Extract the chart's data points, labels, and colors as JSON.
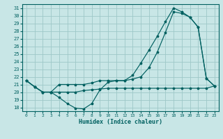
{
  "xlabel": "Humidex (Indice chaleur)",
  "background_color": "#c8e6e6",
  "grid_color": "#9ec8c8",
  "line_color": "#006060",
  "xlim": [
    -0.5,
    23.5
  ],
  "ylim": [
    17.5,
    31.5
  ],
  "yticks": [
    18,
    19,
    20,
    21,
    22,
    23,
    24,
    25,
    26,
    27,
    28,
    29,
    30,
    31
  ],
  "xticks": [
    0,
    1,
    2,
    3,
    4,
    5,
    6,
    7,
    8,
    9,
    10,
    11,
    12,
    13,
    14,
    15,
    16,
    17,
    18,
    19,
    20,
    21,
    22,
    23
  ],
  "line1_x": [
    0,
    1,
    2,
    3,
    4,
    5,
    6,
    7,
    8,
    9,
    10,
    11,
    12,
    13,
    14,
    15,
    16,
    17,
    18,
    19,
    20,
    21,
    22,
    23
  ],
  "line1_y": [
    21.5,
    20.7,
    20.0,
    20.0,
    19.3,
    18.5,
    17.9,
    17.8,
    18.5,
    20.3,
    21.3,
    21.5,
    21.5,
    22.2,
    23.8,
    25.5,
    27.3,
    29.2,
    31.0,
    30.5,
    29.8,
    28.5,
    21.8,
    20.8
  ],
  "line2_x": [
    0,
    1,
    2,
    3,
    4,
    5,
    6,
    7,
    8,
    9,
    10,
    11,
    12,
    13,
    14,
    15,
    16,
    17,
    18,
    19,
    20,
    21,
    22,
    23
  ],
  "line2_y": [
    21.5,
    20.7,
    20.0,
    20.0,
    21.0,
    21.0,
    21.0,
    21.0,
    21.2,
    21.5,
    21.5,
    21.5,
    21.5,
    21.7,
    22.0,
    23.2,
    25.2,
    27.8,
    30.5,
    30.3,
    29.8,
    28.5,
    21.8,
    20.8
  ],
  "line3_x": [
    0,
    1,
    2,
    3,
    4,
    5,
    6,
    7,
    8,
    9,
    10,
    11,
    12,
    13,
    14,
    15,
    16,
    17,
    18,
    19,
    20,
    21,
    22,
    23
  ],
  "line3_y": [
    21.5,
    20.7,
    20.0,
    20.0,
    20.0,
    20.0,
    20.0,
    20.2,
    20.3,
    20.4,
    20.5,
    20.5,
    20.5,
    20.5,
    20.5,
    20.5,
    20.5,
    20.5,
    20.5,
    20.5,
    20.5,
    20.5,
    20.5,
    20.8
  ]
}
